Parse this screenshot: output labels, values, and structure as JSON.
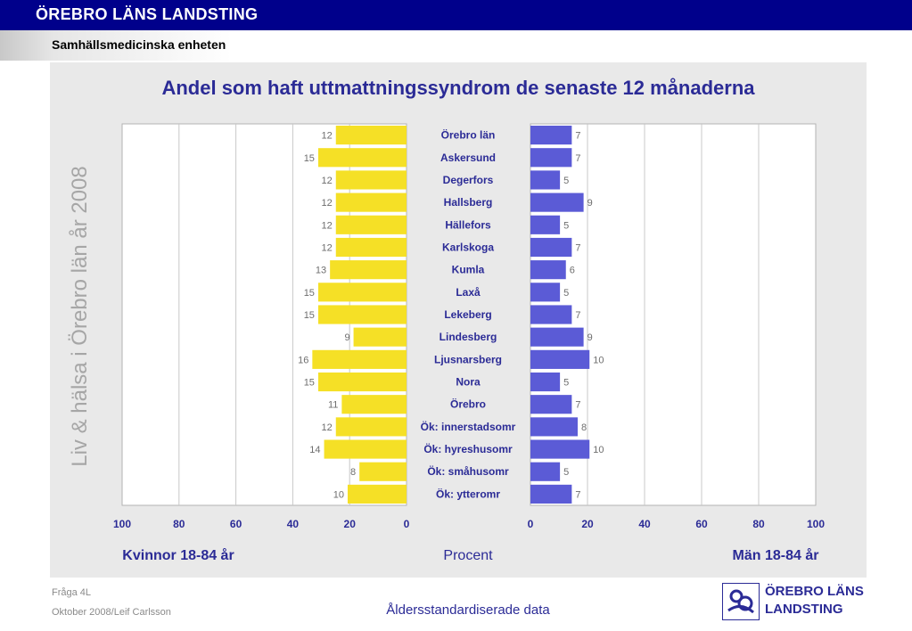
{
  "header": {
    "organization": "ÖREBRO LÄNS LANDSTING",
    "unit": "Samhällsmedicinska enheten",
    "bar_color": "#00008b"
  },
  "side_title": "Liv & hälsa i Örebro län år 2008",
  "footer": {
    "question": "Fråga 4L",
    "date_author": "Oktober 2008/Leif Carlsson",
    "caption": "Åldersstandardiserade data"
  },
  "logo": {
    "line1": "ÖREBRO LÄNS",
    "line2": "LANDSTING",
    "icon": "county-council-logo-icon"
  },
  "chart_data": {
    "type": "bar",
    "title": "Andel som haft uttmattningssyndrom de senaste 12 månaderna",
    "orientation": "horizontal-butterfly",
    "categories": [
      "Örebro län",
      "Askersund",
      "Degerfors",
      "Hallsberg",
      "Hällefors",
      "Karlskoga",
      "Kumla",
      "Laxå",
      "Lekeberg",
      "Lindesberg",
      "Ljusnarsberg",
      "Nora",
      "Örebro",
      "Ök: innerstadsomr",
      "Ök: hyreshusomr",
      "Ök: småhusomr",
      "Ök: ytteromr"
    ],
    "series": [
      {
        "name": "Kvinnor 18-84 år",
        "side": "left",
        "color": "#f5e026",
        "values": [
          12,
          15,
          12,
          12,
          12,
          12,
          13,
          15,
          15,
          9,
          16,
          15,
          11,
          12,
          14,
          8,
          10
        ]
      },
      {
        "name": "Män 18-84 år",
        "side": "right",
        "color": "#5b5bd6",
        "values": [
          7,
          7,
          5,
          9,
          5,
          7,
          6,
          5,
          7,
          9,
          10,
          5,
          7,
          8,
          10,
          5,
          7
        ]
      }
    ],
    "left_axis_ticks": [
      "100",
      "80",
      "60",
      "40",
      "20",
      "0"
    ],
    "right_axis_ticks": [
      "0",
      "20",
      "40",
      "60",
      "80",
      "100"
    ],
    "xlim": [
      0,
      100
    ],
    "xlabel": "Procent",
    "grid": true
  }
}
